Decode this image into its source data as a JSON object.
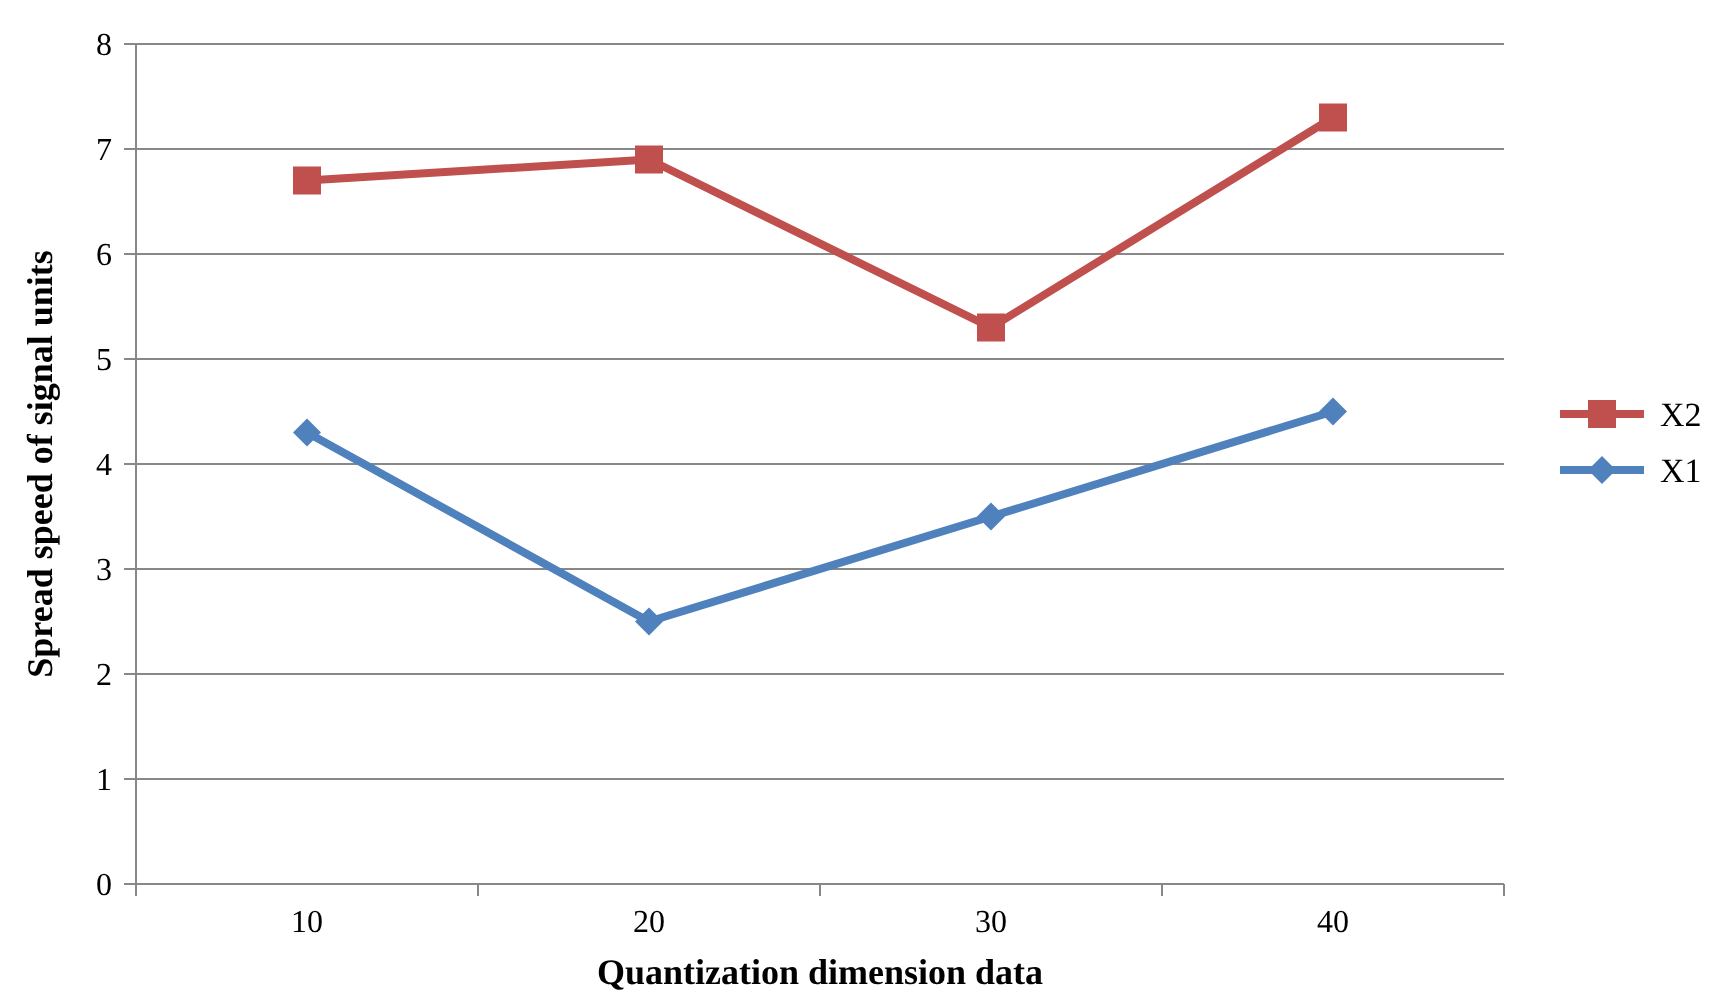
{
  "chart_data": {
    "type": "line",
    "xlabel": "Quantization dimension data",
    "ylabel": "Spread speed of signal units",
    "categories": [
      "10",
      "20",
      "30",
      "40"
    ],
    "series": [
      {
        "name": "X2",
        "color": "#c0504d",
        "marker": "square",
        "values": [
          6.7,
          6.9,
          5.3,
          7.3
        ]
      },
      {
        "name": "X1",
        "color": "#4f81bd",
        "marker": "diamond",
        "values": [
          4.3,
          2.5,
          3.5,
          4.5
        ]
      }
    ],
    "ylim": [
      0,
      8
    ],
    "yticks": [
      0,
      1,
      2,
      3,
      4,
      5,
      6,
      7,
      8
    ],
    "grid": "y",
    "legend": "right"
  }
}
